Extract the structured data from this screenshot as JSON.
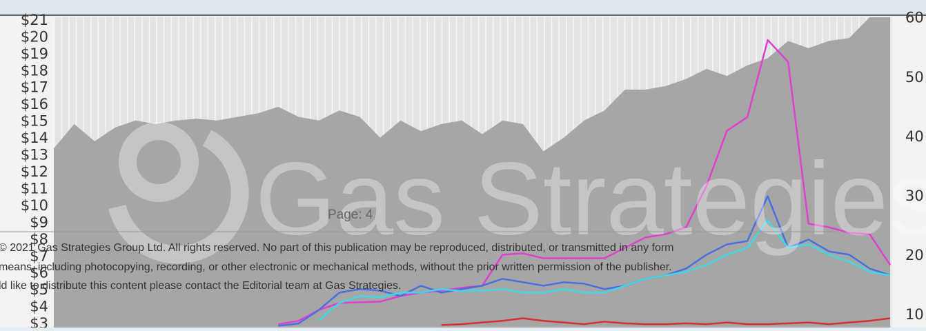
{
  "chart_data": {
    "type": "line",
    "categories": [
      null,
      null,
      null,
      null,
      null,
      null,
      null,
      null,
      null,
      null,
      null,
      null,
      null,
      null,
      null,
      null,
      null,
      null,
      null,
      null,
      null,
      null,
      null,
      null,
      null,
      null,
      null,
      null,
      null,
      null,
      null,
      null,
      null,
      null,
      null,
      null,
      null,
      null,
      null,
      null,
      null,
      null
    ],
    "ylim": [
      2.8,
      21.2
    ],
    "yticks": [
      {
        "value": 3,
        "label": "$3"
      },
      {
        "value": 4,
        "label": "$4"
      },
      {
        "value": 5,
        "label": "$5"
      },
      {
        "value": 6,
        "label": "$6"
      },
      {
        "value": 7,
        "label": "$7"
      },
      {
        "value": 8,
        "label": "$8"
      },
      {
        "value": 9,
        "label": "$9"
      },
      {
        "value": 10,
        "label": "$10"
      },
      {
        "value": 11,
        "label": "$11"
      },
      {
        "value": 12,
        "label": "$12"
      },
      {
        "value": 13,
        "label": "$13"
      },
      {
        "value": 14,
        "label": "$14"
      },
      {
        "value": 15,
        "label": "$15"
      },
      {
        "value": 16,
        "label": "$16"
      },
      {
        "value": 17,
        "label": "$17"
      },
      {
        "value": 18,
        "label": "$18"
      },
      {
        "value": 19,
        "label": "$19"
      },
      {
        "value": 20,
        "label": "$20"
      },
      {
        "value": 21,
        "label": "$21"
      }
    ],
    "y2lim": [
      7.9,
      60.2
    ],
    "y2ticks": [
      10,
      20,
      30,
      40,
      50,
      60
    ],
    "series": [
      {
        "type": "area",
        "axis": "y2",
        "color": "#a6a6a6",
        "values": [
          38.1,
          42.2,
          39.3,
          41.6,
          42.8,
          42.2,
          42.8,
          43.1,
          42.8,
          43.4,
          44.0,
          45.1,
          43.4,
          42.8,
          44.5,
          43.4,
          39.9,
          42.8,
          41.0,
          42.2,
          42.8,
          40.5,
          42.8,
          42.2,
          37.6,
          39.9,
          42.8,
          44.5,
          48.0,
          48.0,
          48.6,
          49.8,
          51.5,
          50.3,
          52.1,
          53.3,
          56.2,
          55.0,
          56.2,
          56.7,
          60.2,
          60.2
        ]
      },
      {
        "type": "line",
        "color": "#e040d0",
        "values": [
          null,
          null,
          null,
          null,
          null,
          null,
          null,
          null,
          null,
          null,
          null,
          3.0,
          3.2,
          3.85,
          4.26,
          4.3,
          4.34,
          4.67,
          4.87,
          4.99,
          5.16,
          5.28,
          7.12,
          7.2,
          6.91,
          6.91,
          6.91,
          6.91,
          7.53,
          8.14,
          8.34,
          8.75,
          11.2,
          14.47,
          15.28,
          19.85,
          18.55,
          8.96,
          8.75,
          8.42,
          8.34,
          6.51
        ]
      },
      {
        "type": "line",
        "color": "#4a6fe0",
        "values": [
          null,
          null,
          null,
          null,
          null,
          null,
          null,
          null,
          null,
          null,
          null,
          2.9,
          3.04,
          3.85,
          4.87,
          5.08,
          4.99,
          4.67,
          5.28,
          4.87,
          5.08,
          5.28,
          5.69,
          5.49,
          5.28,
          5.49,
          5.4,
          5.08,
          5.28,
          5.69,
          5.9,
          6.3,
          7.12,
          7.73,
          7.93,
          10.59,
          7.53,
          8.02,
          7.32,
          7.12,
          6.3,
          5.9
        ]
      },
      {
        "type": "line",
        "color": "#40d8e8",
        "values": [
          null,
          null,
          null,
          null,
          null,
          null,
          null,
          null,
          null,
          null,
          null,
          null,
          null,
          3.24,
          4.26,
          4.67,
          4.6,
          4.87,
          4.87,
          5.08,
          4.96,
          4.99,
          5.08,
          4.87,
          4.87,
          5.08,
          4.87,
          4.87,
          5.28,
          5.69,
          5.9,
          6.1,
          6.51,
          7.12,
          7.53,
          9.16,
          7.53,
          7.73,
          7.12,
          6.71,
          6.1,
          5.9
        ]
      },
      {
        "type": "line",
        "color": "#d83030",
        "values": [
          null,
          null,
          null,
          null,
          null,
          null,
          null,
          null,
          null,
          null,
          null,
          null,
          null,
          null,
          null,
          null,
          null,
          null,
          null,
          2.95,
          3.0,
          3.1,
          3.2,
          3.35,
          3.2,
          3.1,
          3.0,
          3.15,
          3.05,
          3.0,
          3.0,
          3.05,
          3.0,
          3.1,
          3.0,
          3.0,
          3.05,
          3.1,
          3.0,
          3.1,
          3.2,
          3.35
        ]
      }
    ],
    "watermark": "Gas Strategies",
    "page_label": "Page: 4",
    "footer": [
      "© 2021 Gas Strategies Group Ltd. All rights reserved. No part of this publication may be reproduced, distributed, or transmitted in any form",
      "means, including photocopying, recording, or other electronic or mechanical methods, without the prior written permission of the publisher.",
      "ld like to distribute this content please contact the Editorial team at Gas Strategies."
    ]
  }
}
